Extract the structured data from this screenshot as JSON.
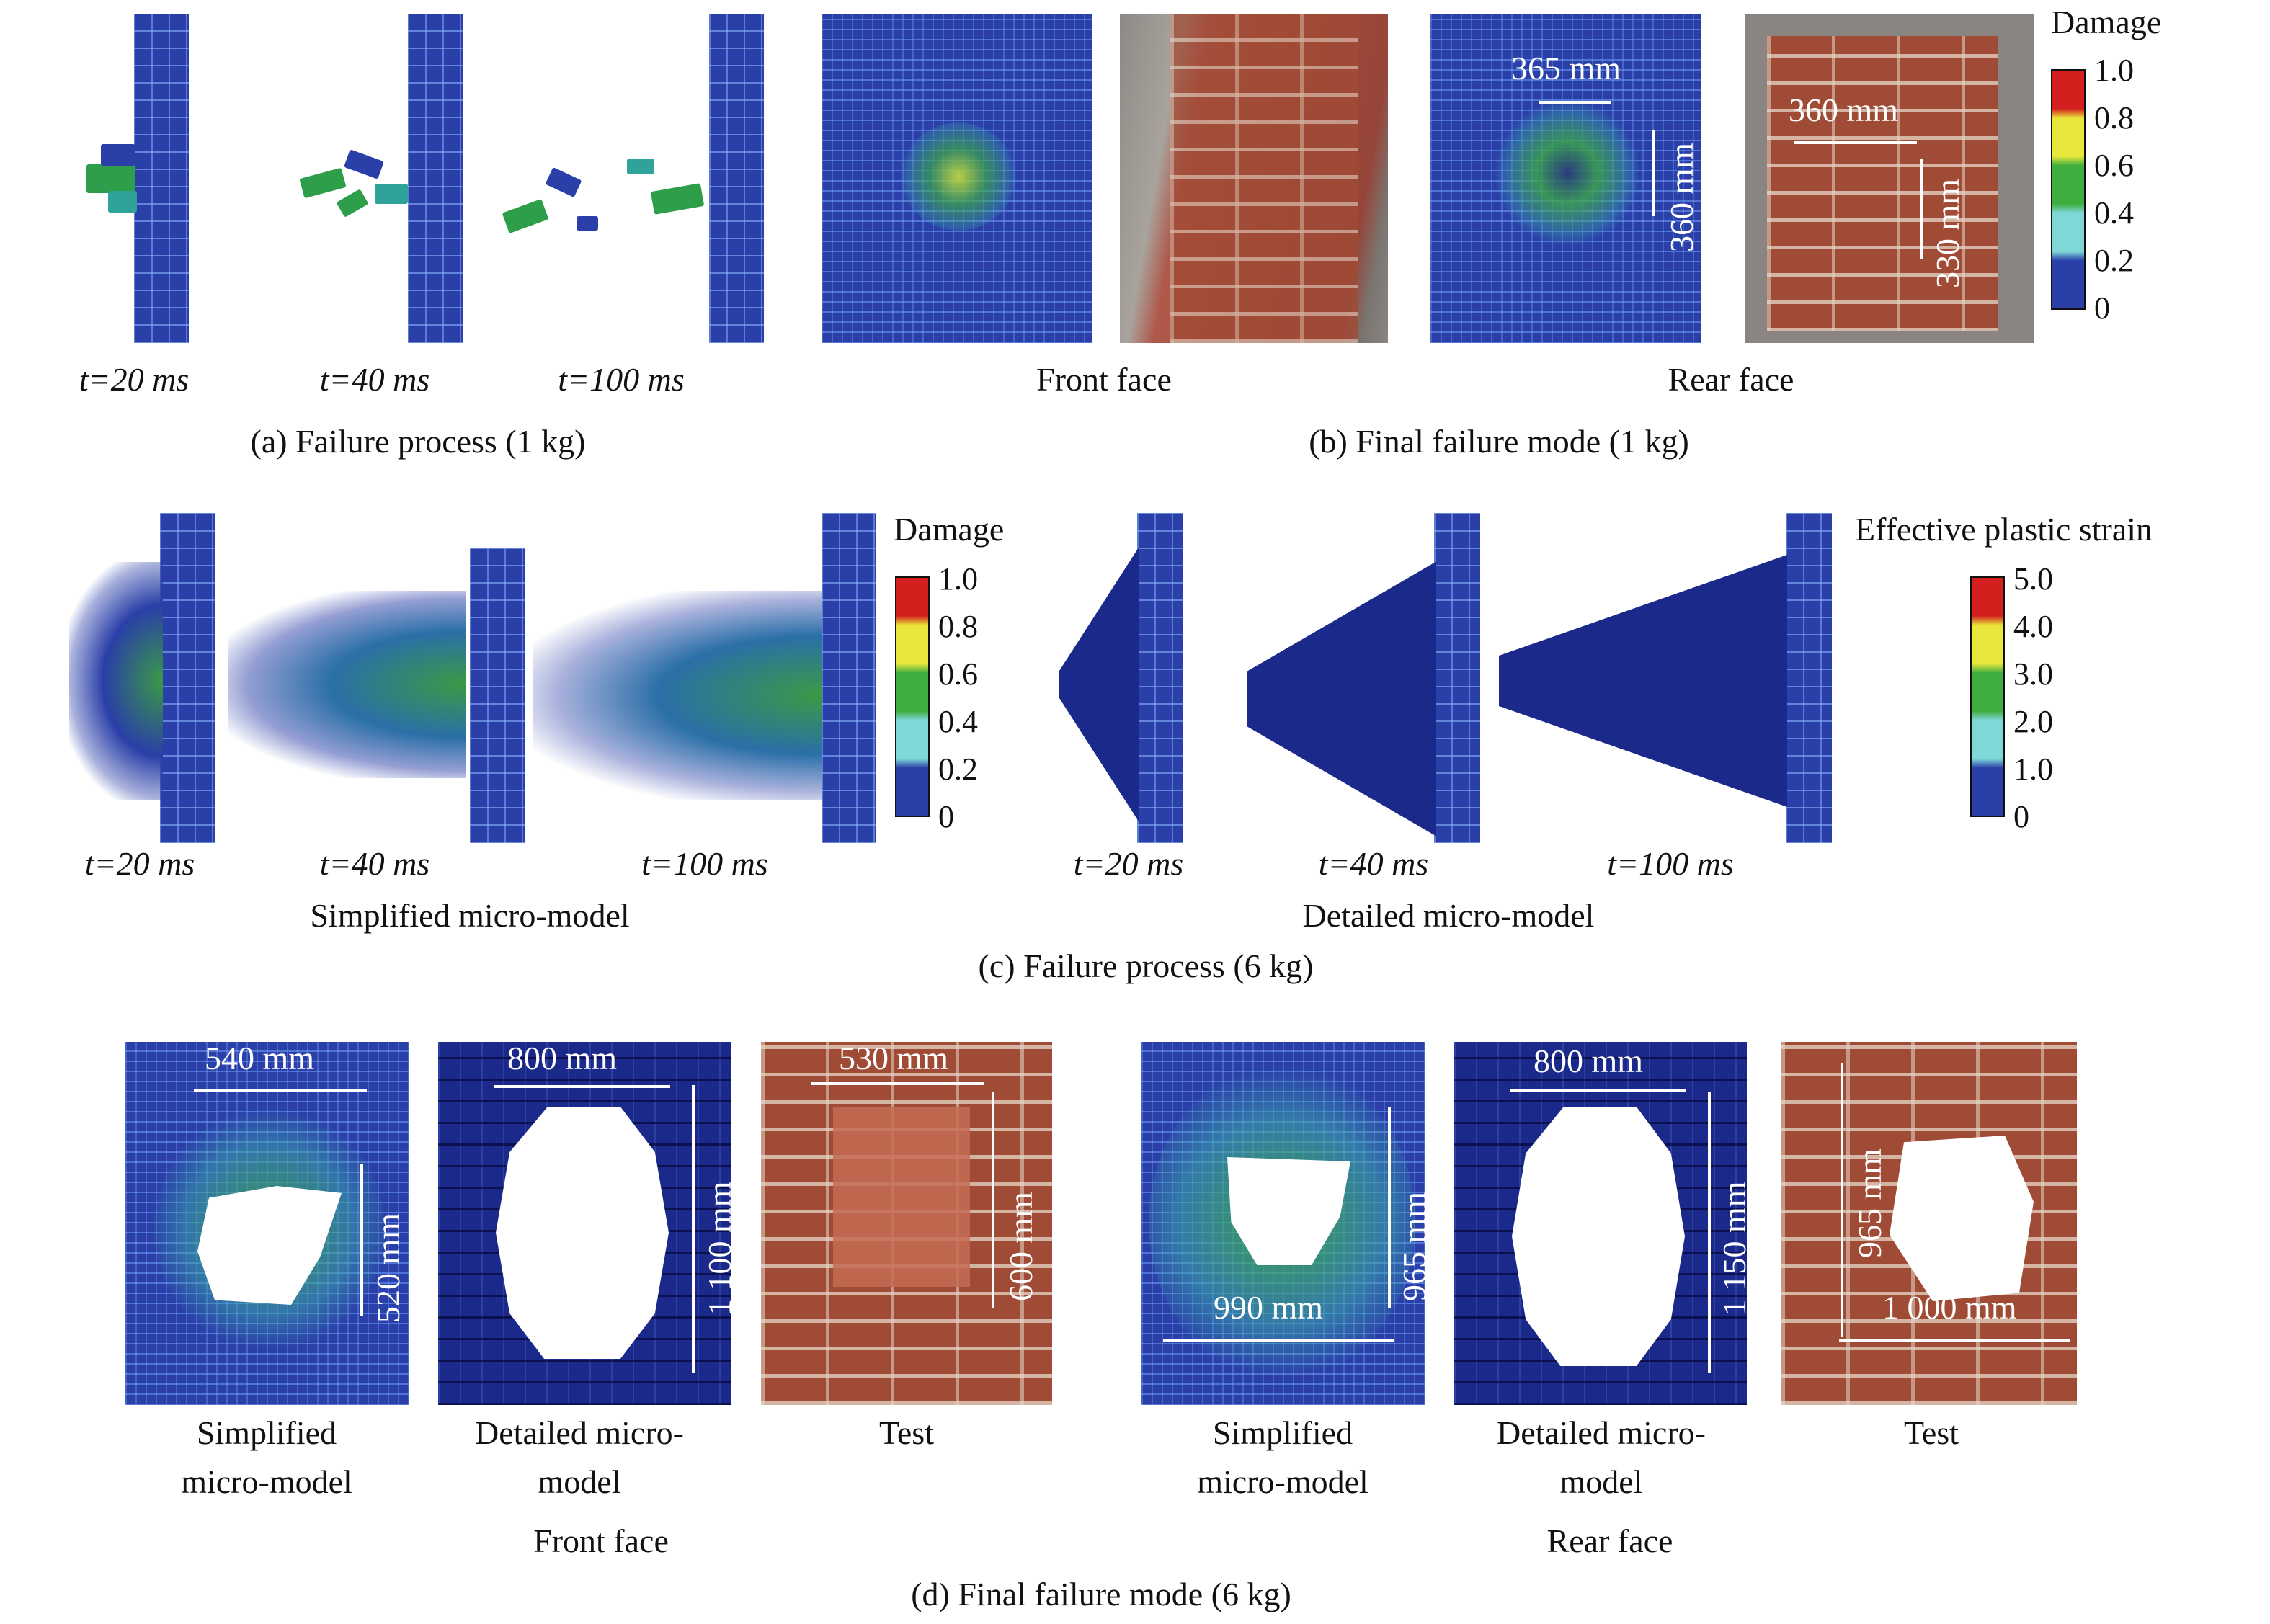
{
  "row_a": {
    "time_labels": [
      "t=20 ms",
      "t=40 ms",
      "t=100 ms"
    ],
    "caption": "(a) Failure process (1 kg)"
  },
  "row_b": {
    "front_face": "Front face",
    "rear_face": "Rear face",
    "dims": [
      "365 mm",
      "360 mm",
      "360 mm",
      "330 mm"
    ],
    "caption": "(b) Final failure mode (1 kg)",
    "legend_title": "Damage",
    "legend_ticks": [
      "1.0",
      "0.8",
      "0.6",
      "0.4",
      "0.2",
      "0"
    ]
  },
  "row_c": {
    "simplified_times": [
      "t=20 ms",
      "t=40 ms",
      "t=100 ms"
    ],
    "detailed_times": [
      "t=20 ms",
      "t=40 ms",
      "t=100 ms"
    ],
    "simplified_label": "Simplified micro-model",
    "detailed_label": "Detailed micro-model",
    "caption": "(c) Failure process (6 kg)",
    "damage_title": "Damage",
    "damage_ticks": [
      "1.0",
      "0.8",
      "0.6",
      "0.4",
      "0.2",
      "0"
    ],
    "strain_title": "Effective plastic strain",
    "strain_ticks": [
      "5.0",
      "4.0",
      "3.0",
      "2.0",
      "1.0",
      "0"
    ]
  },
  "row_d": {
    "front": {
      "dims": [
        "540 mm",
        "520 mm",
        "800 mm",
        "1 100 mm",
        "530 mm",
        "600 mm"
      ],
      "labels": [
        "Simplified",
        "micro-model",
        "Detailed micro-",
        "model",
        "Test"
      ],
      "group_label": "Front face"
    },
    "rear": {
      "dims": [
        "965 mm",
        "990 mm",
        "800 mm",
        "1 150 mm",
        "965 mm",
        "1 000 mm"
      ],
      "labels": [
        "Simplified",
        "micro-model",
        "Detailed micro-",
        "model",
        "Test"
      ],
      "group_label": "Rear face"
    },
    "caption": "(d) Final failure mode (6 kg)"
  }
}
